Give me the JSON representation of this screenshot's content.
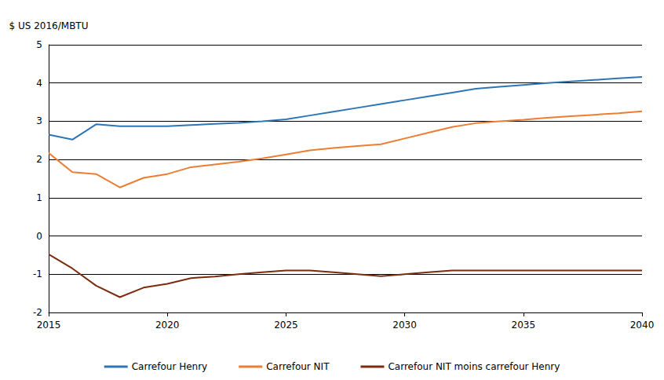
{
  "chart_data": {
    "type": "line",
    "y_label": "$ US 2016/MBTU",
    "x": [
      2015,
      2016,
      2017,
      2018,
      2019,
      2020,
      2021,
      2022,
      2023,
      2024,
      2025,
      2026,
      2027,
      2028,
      2029,
      2030,
      2031,
      2032,
      2033,
      2034,
      2035,
      2036,
      2037,
      2038,
      2039,
      2040
    ],
    "series": [
      {
        "name": "Carrefour Henry",
        "color": "#2e75b6",
        "values": [
          2.65,
          2.52,
          2.92,
          2.87,
          2.87,
          2.87,
          2.9,
          2.93,
          2.96,
          3.0,
          3.05,
          3.15,
          3.25,
          3.35,
          3.45,
          3.55,
          3.65,
          3.75,
          3.85,
          3.9,
          3.95,
          4.0,
          4.04,
          4.08,
          4.12,
          4.16
        ]
      },
      {
        "name": "Carrefour NIT",
        "color": "#ed7d31",
        "values": [
          2.17,
          1.67,
          1.62,
          1.27,
          1.52,
          1.62,
          1.8,
          1.87,
          1.94,
          2.03,
          2.13,
          2.24,
          2.3,
          2.35,
          2.4,
          2.55,
          2.7,
          2.85,
          2.95,
          3.0,
          3.04,
          3.09,
          3.13,
          3.17,
          3.21,
          3.26
        ]
      },
      {
        "name": "Carrefour NIT moins carrefour Henry",
        "color": "#7b2c0f",
        "values": [
          -0.48,
          -0.85,
          -1.3,
          -1.6,
          -1.35,
          -1.25,
          -1.1,
          -1.06,
          -1.0,
          -0.95,
          -0.9,
          -0.9,
          -0.95,
          -1.0,
          -1.05,
          -1.0,
          -0.95,
          -0.9,
          -0.9,
          -0.9,
          -0.9,
          -0.9,
          -0.9,
          -0.9,
          -0.9,
          -0.9
        ]
      }
    ],
    "xlim": [
      2015,
      2040
    ],
    "xticks": [
      2015,
      2020,
      2025,
      2030,
      2035,
      2040
    ],
    "ylim": [
      -2,
      5
    ],
    "yticks": [
      -2,
      -1,
      0,
      1,
      2,
      3,
      4,
      5
    ],
    "grid": true,
    "legend": "bottom"
  }
}
